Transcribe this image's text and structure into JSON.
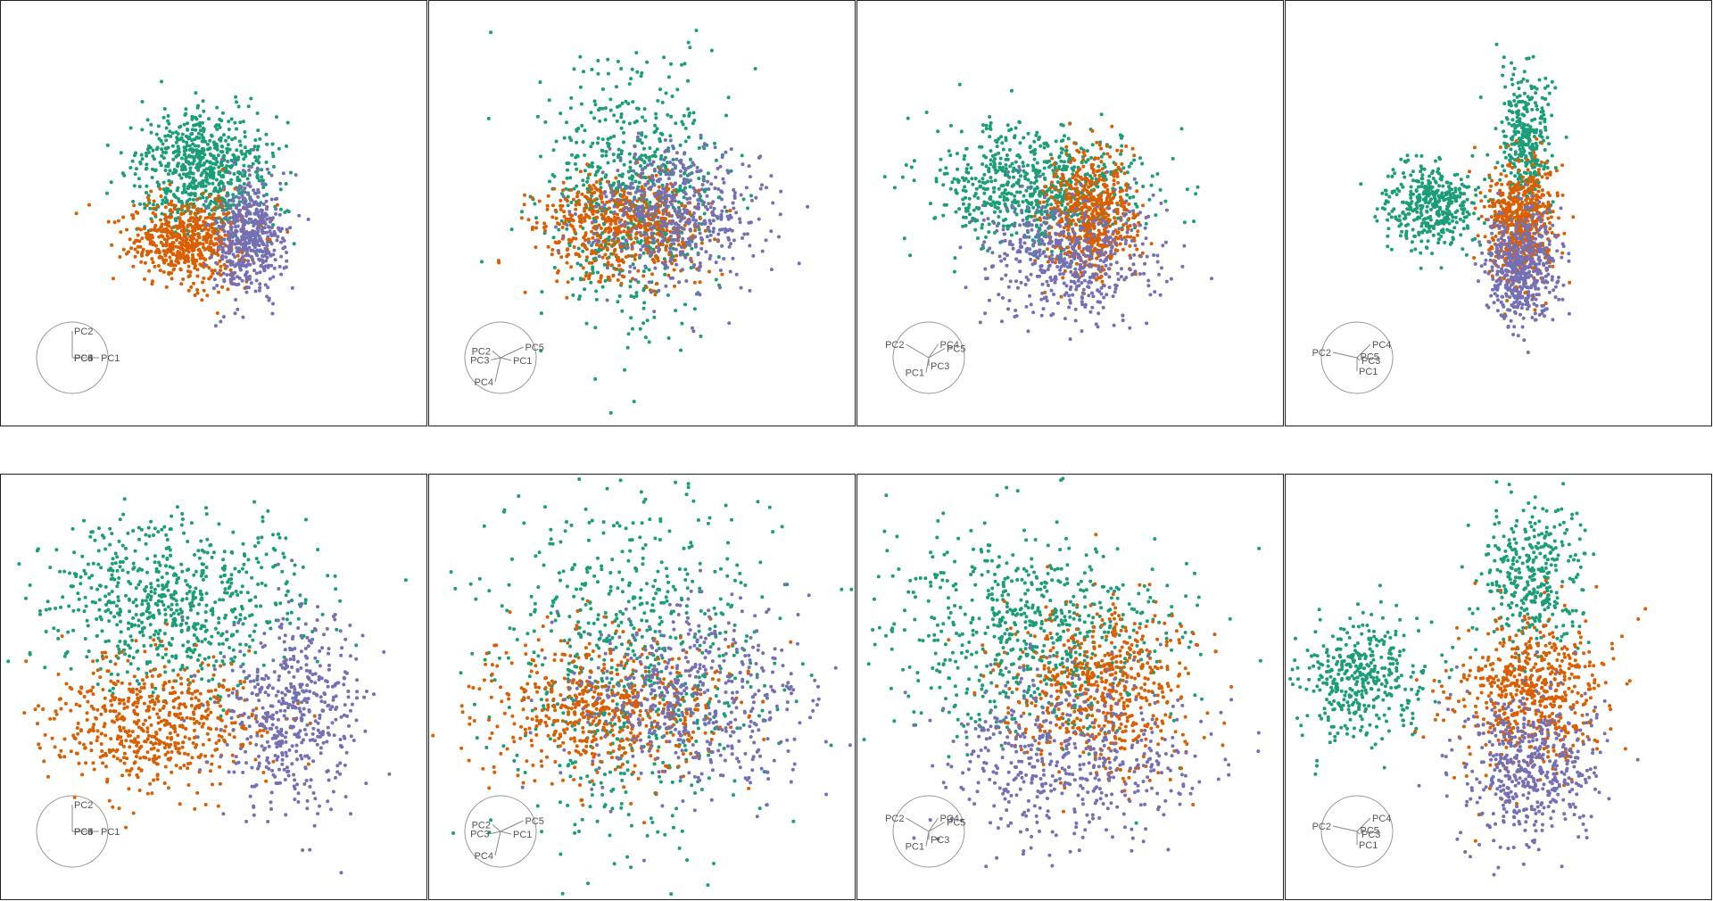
{
  "chart_data": {
    "type": "scatter",
    "description_free": true,
    "colors": {
      "green": "#1b9e77",
      "orange": "#d95f02",
      "purple": "#7570b3"
    },
    "guide_circle_color": "#999999",
    "panels": [
      {
        "row": 0,
        "col": 0,
        "axis_guide": [
          {
            "label": "PC1",
            "dx": 1.0,
            "dy": 0.0
          },
          {
            "label": "PC2",
            "dx": 0.0,
            "dy": -1.0
          },
          {
            "label": "PC3",
            "dx": 0.0,
            "dy": 0.0
          },
          {
            "label": "PC4",
            "dx": 0.0,
            "dy": 0.0
          },
          {
            "label": "PC5",
            "dx": 0.0,
            "dy": 0.0
          }
        ],
        "clusters": [
          {
            "color": "green",
            "cx": 0.47,
            "cy": 0.4,
            "sx": 0.08,
            "sy": 0.07,
            "n": 700
          },
          {
            "color": "orange",
            "cx": 0.44,
            "cy": 0.56,
            "sx": 0.07,
            "sy": 0.05,
            "n": 600
          },
          {
            "color": "purple",
            "cx": 0.58,
            "cy": 0.55,
            "sx": 0.04,
            "sy": 0.07,
            "n": 500
          }
        ]
      },
      {
        "row": 0,
        "col": 1,
        "axis_guide": [
          {
            "label": "PC1",
            "dx": 0.4,
            "dy": 0.1
          },
          {
            "label": "PC2",
            "dx": -0.3,
            "dy": -0.25
          },
          {
            "label": "PC3",
            "dx": -0.35,
            "dy": 0.08
          },
          {
            "label": "PC4",
            "dx": -0.2,
            "dy": 0.9
          },
          {
            "label": "PC5",
            "dx": 0.85,
            "dy": -0.4
          }
        ],
        "clusters": [
          {
            "color": "green",
            "cx": 0.47,
            "cy": 0.45,
            "sx": 0.1,
            "sy": 0.14,
            "n": 700
          },
          {
            "color": "orange",
            "cx": 0.45,
            "cy": 0.53,
            "sx": 0.1,
            "sy": 0.06,
            "n": 600
          },
          {
            "color": "purple",
            "cx": 0.58,
            "cy": 0.5,
            "sx": 0.1,
            "sy": 0.08,
            "n": 500
          }
        ]
      },
      {
        "row": 0,
        "col": 2,
        "axis_guide": [
          {
            "label": "PC1",
            "dx": -0.1,
            "dy": 0.55
          },
          {
            "label": "PC2",
            "dx": -0.85,
            "dy": -0.5
          },
          {
            "label": "PC3",
            "dx": 0.0,
            "dy": 0.3
          },
          {
            "label": "PC4",
            "dx": 0.35,
            "dy": -0.5
          },
          {
            "label": "PC5",
            "dx": 0.6,
            "dy": -0.35
          }
        ],
        "clusters": [
          {
            "color": "green",
            "cx": 0.42,
            "cy": 0.44,
            "sx": 0.12,
            "sy": 0.07,
            "n": 700
          },
          {
            "color": "orange",
            "cx": 0.55,
            "cy": 0.5,
            "sx": 0.05,
            "sy": 0.07,
            "n": 600
          },
          {
            "color": "purple",
            "cx": 0.5,
            "cy": 0.6,
            "sx": 0.1,
            "sy": 0.07,
            "n": 500
          }
        ]
      },
      {
        "row": 0,
        "col": 3,
        "axis_guide": [
          {
            "label": "PC1",
            "dx": 0.0,
            "dy": 0.5
          },
          {
            "label": "PC2",
            "dx": -0.9,
            "dy": -0.2
          },
          {
            "label": "PC3",
            "dx": 0.1,
            "dy": 0.1
          },
          {
            "label": "PC4",
            "dx": 0.5,
            "dy": -0.5
          },
          {
            "label": "PC5",
            "dx": 0.05,
            "dy": -0.05
          }
        ],
        "clusters": [
          {
            "color": "green",
            "cx": 0.34,
            "cy": 0.48,
            "sx": 0.06,
            "sy": 0.05,
            "n": 400
          },
          {
            "color": "green",
            "cx": 0.56,
            "cy": 0.33,
            "sx": 0.03,
            "sy": 0.08,
            "n": 350
          },
          {
            "color": "orange",
            "cx": 0.55,
            "cy": 0.52,
            "sx": 0.04,
            "sy": 0.07,
            "n": 600
          },
          {
            "color": "purple",
            "cx": 0.55,
            "cy": 0.62,
            "sx": 0.04,
            "sy": 0.07,
            "n": 500
          }
        ]
      },
      {
        "row": 1,
        "col": 0,
        "axis_guide": [
          {
            "label": "PC1",
            "dx": 1.0,
            "dy": 0.0
          },
          {
            "label": "PC2",
            "dx": 0.0,
            "dy": -1.0
          },
          {
            "label": "PC3",
            "dx": 0.0,
            "dy": 0.0
          },
          {
            "label": "PC4",
            "dx": 0.0,
            "dy": 0.0
          },
          {
            "label": "PC5",
            "dx": 0.0,
            "dy": 0.0
          }
        ],
        "clusters": [
          {
            "color": "green",
            "cx": 0.4,
            "cy": 0.3,
            "sx": 0.14,
            "sy": 0.1,
            "n": 700
          },
          {
            "color": "orange",
            "cx": 0.36,
            "cy": 0.58,
            "sx": 0.12,
            "sy": 0.08,
            "n": 600
          },
          {
            "color": "purple",
            "cx": 0.68,
            "cy": 0.55,
            "sx": 0.08,
            "sy": 0.11,
            "n": 500
          }
        ]
      },
      {
        "row": 1,
        "col": 1,
        "axis_guide": [
          {
            "label": "PC1",
            "dx": 0.4,
            "dy": 0.1
          },
          {
            "label": "PC2",
            "dx": -0.3,
            "dy": -0.25
          },
          {
            "label": "PC3",
            "dx": -0.35,
            "dy": 0.08
          },
          {
            "label": "PC4",
            "dx": -0.2,
            "dy": 0.9
          },
          {
            "label": "PC5",
            "dx": 0.85,
            "dy": -0.4
          }
        ],
        "clusters": [
          {
            "color": "green",
            "cx": 0.47,
            "cy": 0.45,
            "sx": 0.16,
            "sy": 0.2,
            "n": 700
          },
          {
            "color": "orange",
            "cx": 0.4,
            "cy": 0.55,
            "sx": 0.15,
            "sy": 0.08,
            "n": 600
          },
          {
            "color": "purple",
            "cx": 0.62,
            "cy": 0.53,
            "sx": 0.15,
            "sy": 0.11,
            "n": 500
          }
        ]
      },
      {
        "row": 1,
        "col": 2,
        "axis_guide": [
          {
            "label": "PC1",
            "dx": -0.1,
            "dy": 0.55
          },
          {
            "label": "PC2",
            "dx": -0.85,
            "dy": -0.5
          },
          {
            "label": "PC3",
            "dx": 0.0,
            "dy": 0.3
          },
          {
            "label": "PC4",
            "dx": 0.35,
            "dy": -0.5
          },
          {
            "label": "PC5",
            "dx": 0.6,
            "dy": -0.35
          }
        ],
        "clusters": [
          {
            "color": "green",
            "cx": 0.4,
            "cy": 0.37,
            "sx": 0.17,
            "sy": 0.12,
            "n": 700
          },
          {
            "color": "orange",
            "cx": 0.57,
            "cy": 0.5,
            "sx": 0.1,
            "sy": 0.1,
            "n": 600
          },
          {
            "color": "purple",
            "cx": 0.5,
            "cy": 0.67,
            "sx": 0.15,
            "sy": 0.1,
            "n": 500
          }
        ]
      },
      {
        "row": 1,
        "col": 3,
        "axis_guide": [
          {
            "label": "PC1",
            "dx": 0.0,
            "dy": 0.5
          },
          {
            "label": "PC2",
            "dx": -0.9,
            "dy": -0.2
          },
          {
            "label": "PC3",
            "dx": 0.1,
            "dy": 0.1
          },
          {
            "label": "PC4",
            "dx": 0.5,
            "dy": -0.5
          },
          {
            "label": "PC5",
            "dx": 0.05,
            "dy": -0.05
          }
        ],
        "clusters": [
          {
            "color": "green",
            "cx": 0.18,
            "cy": 0.48,
            "sx": 0.07,
            "sy": 0.07,
            "n": 400
          },
          {
            "color": "green",
            "cx": 0.58,
            "cy": 0.24,
            "sx": 0.06,
            "sy": 0.09,
            "n": 350
          },
          {
            "color": "orange",
            "cx": 0.57,
            "cy": 0.51,
            "sx": 0.09,
            "sy": 0.09,
            "n": 600
          },
          {
            "color": "purple",
            "cx": 0.57,
            "cy": 0.69,
            "sx": 0.08,
            "sy": 0.09,
            "n": 500
          }
        ]
      }
    ]
  }
}
